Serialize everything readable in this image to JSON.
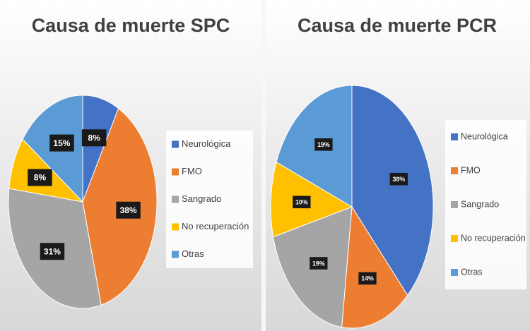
{
  "chart_data": [
    {
      "type": "pie",
      "title": "Causa de muerte SPC",
      "categories": [
        "Neurológica",
        "FMO",
        "Sangrado",
        "No recuperación",
        "Otras"
      ],
      "values": [
        8,
        38,
        31,
        8,
        15
      ],
      "value_labels": [
        "8%",
        "38%",
        "31%",
        "8%",
        "15%"
      ],
      "colors": [
        "#4472c4",
        "#ed7d31",
        "#a5a5a5",
        "#ffc000",
        "#5b9bd5"
      ],
      "legend": "right"
    },
    {
      "type": "pie",
      "title": "Causa de muerte PCR",
      "categories": [
        "Neurológica",
        "FMO",
        "Sangrado",
        "No recuperación",
        "Otras"
      ],
      "values": [
        38,
        14,
        19,
        10,
        19
      ],
      "value_labels": [
        "38%",
        "14%",
        "19%",
        "10%",
        "19%"
      ],
      "colors": [
        "#4472c4",
        "#ed7d31",
        "#a5a5a5",
        "#ffc000",
        "#5b9bd5"
      ],
      "legend": "right"
    }
  ]
}
